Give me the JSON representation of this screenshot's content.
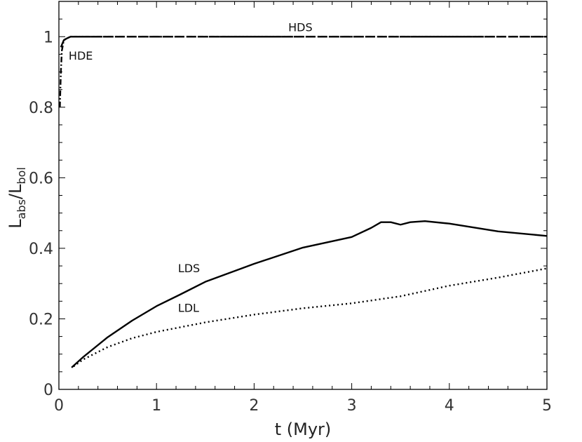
{
  "chart_data": {
    "type": "line",
    "xlabel": "t (Myr)",
    "ylabel": {
      "main": "L",
      "sub1": "abs",
      "sep": "/L",
      "sub2": "bol"
    },
    "xlim": [
      0,
      5
    ],
    "ylim": [
      0,
      1.1
    ],
    "x_ticks": [
      "0",
      "1",
      "2",
      "3",
      "4",
      "5"
    ],
    "y_ticks": [
      "0",
      "0.2",
      "0.4",
      "0.6",
      "0.8",
      "1"
    ],
    "grid": false,
    "legend": "none",
    "series": [
      {
        "name": "HDS",
        "style": "long-dash",
        "color": "#000000",
        "x": [
          0.02,
          0.05,
          0.08,
          0.12,
          0.5,
          1,
          2,
          3,
          4,
          5
        ],
        "y": [
          0.97,
          0.99,
          0.995,
          1.0,
          1.0,
          1.0,
          1.0,
          1.0,
          1.0,
          1.0
        ]
      },
      {
        "name": "HDE",
        "style": "dash-dot",
        "color": "#000000",
        "x": [
          0.01,
          0.02,
          0.03,
          0.05,
          0.08,
          0.12,
          0.5,
          1,
          2,
          3,
          4,
          5
        ],
        "y": [
          0.8,
          0.9,
          0.96,
          0.99,
          0.995,
          1.0,
          1.0,
          1.0,
          1.0,
          1.0,
          1.0,
          1.0
        ]
      },
      {
        "name": "LDS",
        "style": "solid",
        "color": "#000000",
        "x": [
          0.13,
          0.25,
          0.5,
          0.75,
          1.0,
          1.25,
          1.5,
          2.0,
          2.5,
          3.0,
          3.2,
          3.3,
          3.4,
          3.5,
          3.6,
          3.75,
          4.0,
          4.5,
          5.0
        ],
        "y": [
          0.062,
          0.092,
          0.148,
          0.195,
          0.236,
          0.27,
          0.305,
          0.356,
          0.402,
          0.432,
          0.458,
          0.474,
          0.474,
          0.467,
          0.474,
          0.477,
          0.47,
          0.448,
          0.435
        ]
      },
      {
        "name": "LDL",
        "style": "dotted",
        "color": "#000000",
        "x": [
          0.15,
          0.25,
          0.5,
          0.75,
          1.0,
          1.5,
          2.0,
          2.5,
          3.0,
          3.5,
          4.0,
          4.5,
          5.0
        ],
        "y": [
          0.065,
          0.085,
          0.12,
          0.145,
          0.163,
          0.19,
          0.212,
          0.23,
          0.244,
          0.264,
          0.294,
          0.317,
          0.343
        ]
      }
    ],
    "annotations": [
      {
        "text": "HDS",
        "x": 2.35,
        "y": 1.015
      },
      {
        "text": "HDE",
        "x": 0.1,
        "y": 0.935
      },
      {
        "text": "LDS",
        "x": 1.22,
        "y": 0.332
      },
      {
        "text": "LDL",
        "x": 1.22,
        "y": 0.22
      }
    ]
  }
}
